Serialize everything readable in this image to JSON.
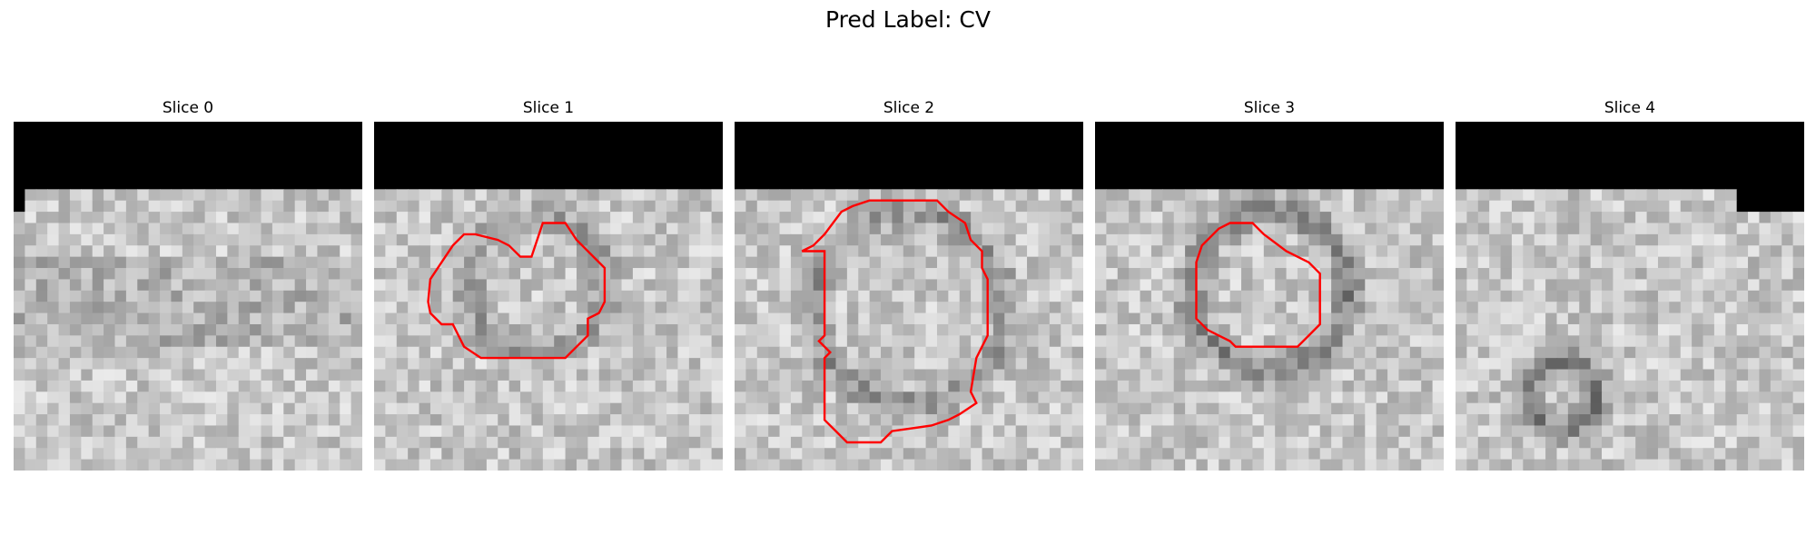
{
  "figure": {
    "title": "Pred Label: CV"
  },
  "panels": [
    {
      "title": "Slice 0",
      "seed": 11,
      "top_black_rows": 6,
      "notch": "left",
      "blob": null,
      "contour": null
    },
    {
      "title": "Slice 1",
      "seed": 23,
      "top_black_rows": 6,
      "notch": null,
      "blob": "ring-soft",
      "contour": "slice1"
    },
    {
      "title": "Slice 2",
      "seed": 37,
      "top_black_rows": 6,
      "notch": null,
      "blob": "large",
      "contour": "slice2"
    },
    {
      "title": "Slice 3",
      "seed": 53,
      "top_black_rows": 6,
      "notch": null,
      "blob": "ring",
      "contour": "slice3"
    },
    {
      "title": "Slice 4",
      "seed": 71,
      "top_black_rows": 6,
      "notch": "right",
      "blob": "small-ring",
      "contour": null
    }
  ],
  "colors": {
    "contour": "#ff0000",
    "mask": "#000000"
  }
}
